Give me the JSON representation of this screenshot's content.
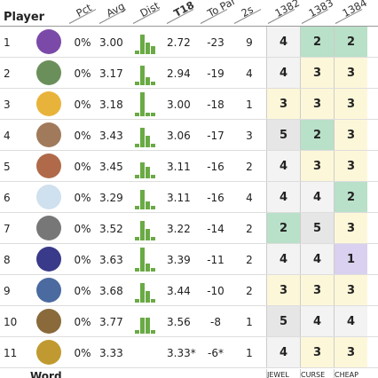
{
  "header": {
    "player": "Player",
    "columns": [
      "Pct",
      "Avg",
      "Dist",
      "T18",
      "To Par",
      "2s",
      "1382",
      "1383",
      "1384"
    ]
  },
  "rows": [
    {
      "rank": "1",
      "pct": "0%",
      "avg": "3.00",
      "dist": [
        1,
        5,
        3,
        2
      ],
      "t18": "2.72",
      "to_par": "-23",
      "twos": "9",
      "scores": [
        "4",
        "2",
        "2"
      ]
    },
    {
      "rank": "2",
      "pct": "0%",
      "avg": "3.17",
      "dist": [
        1,
        5,
        2,
        1
      ],
      "t18": "2.94",
      "to_par": "-19",
      "twos": "4",
      "scores": [
        "4",
        "3",
        "3"
      ]
    },
    {
      "rank": "3",
      "pct": "0%",
      "avg": "3.18",
      "dist": [
        1,
        6,
        1,
        1
      ],
      "t18": "3.00",
      "to_par": "-18",
      "twos": "1",
      "scores": [
        "3",
        "3",
        "3"
      ]
    },
    {
      "rank": "4",
      "pct": "0%",
      "avg": "3.43",
      "dist": [
        1,
        5,
        3,
        1
      ],
      "t18": "3.06",
      "to_par": "-17",
      "twos": "3",
      "scores": [
        "5",
        "2",
        "3"
      ]
    },
    {
      "rank": "5",
      "pct": "0%",
      "avg": "3.45",
      "dist": [
        1,
        4,
        3,
        1
      ],
      "t18": "3.11",
      "to_par": "-16",
      "twos": "2",
      "scores": [
        "4",
        "3",
        "3"
      ]
    },
    {
      "rank": "6",
      "pct": "0%",
      "avg": "3.29",
      "dist": [
        1,
        5,
        2,
        1
      ],
      "t18": "3.11",
      "to_par": "-16",
      "twos": "4",
      "scores": [
        "4",
        "4",
        "2"
      ]
    },
    {
      "rank": "7",
      "pct": "0%",
      "avg": "3.52",
      "dist": [
        1,
        5,
        3,
        1
      ],
      "t18": "3.22",
      "to_par": "-14",
      "twos": "2",
      "scores": [
        "2",
        "5",
        "3"
      ]
    },
    {
      "rank": "8",
      "pct": "0%",
      "avg": "3.63",
      "dist": [
        1,
        6,
        2,
        1
      ],
      "t18": "3.39",
      "to_par": "-11",
      "twos": "2",
      "scores": [
        "4",
        "4",
        "1"
      ]
    },
    {
      "rank": "9",
      "pct": "0%",
      "avg": "3.68",
      "dist": [
        1,
        5,
        3,
        1
      ],
      "t18": "3.44",
      "to_par": "-10",
      "twos": "2",
      "scores": [
        "3",
        "3",
        "3"
      ]
    },
    {
      "rank": "10",
      "pct": "0%",
      "avg": "3.77",
      "dist": [
        1,
        4,
        4,
        1
      ],
      "t18": "3.56",
      "to_par": "-8",
      "twos": "1",
      "scores": [
        "5",
        "4",
        "4"
      ]
    },
    {
      "rank": "11",
      "pct": "0%",
      "avg": "3.33",
      "dist": null,
      "t18": "3.33*",
      "to_par": "-6*",
      "twos": "1",
      "scores": [
        "4",
        "3",
        "3"
      ]
    }
  ],
  "footer": {
    "label": "Word",
    "words": [
      "JEWEL",
      "CURSE",
      "CHEAP"
    ]
  },
  "score_colors": {
    "1": "#d9d1ef",
    "2": "#b9e0c8",
    "3": "#fdf7d9",
    "4": "#f3f3f3",
    "5": "#e6e6e6"
  }
}
